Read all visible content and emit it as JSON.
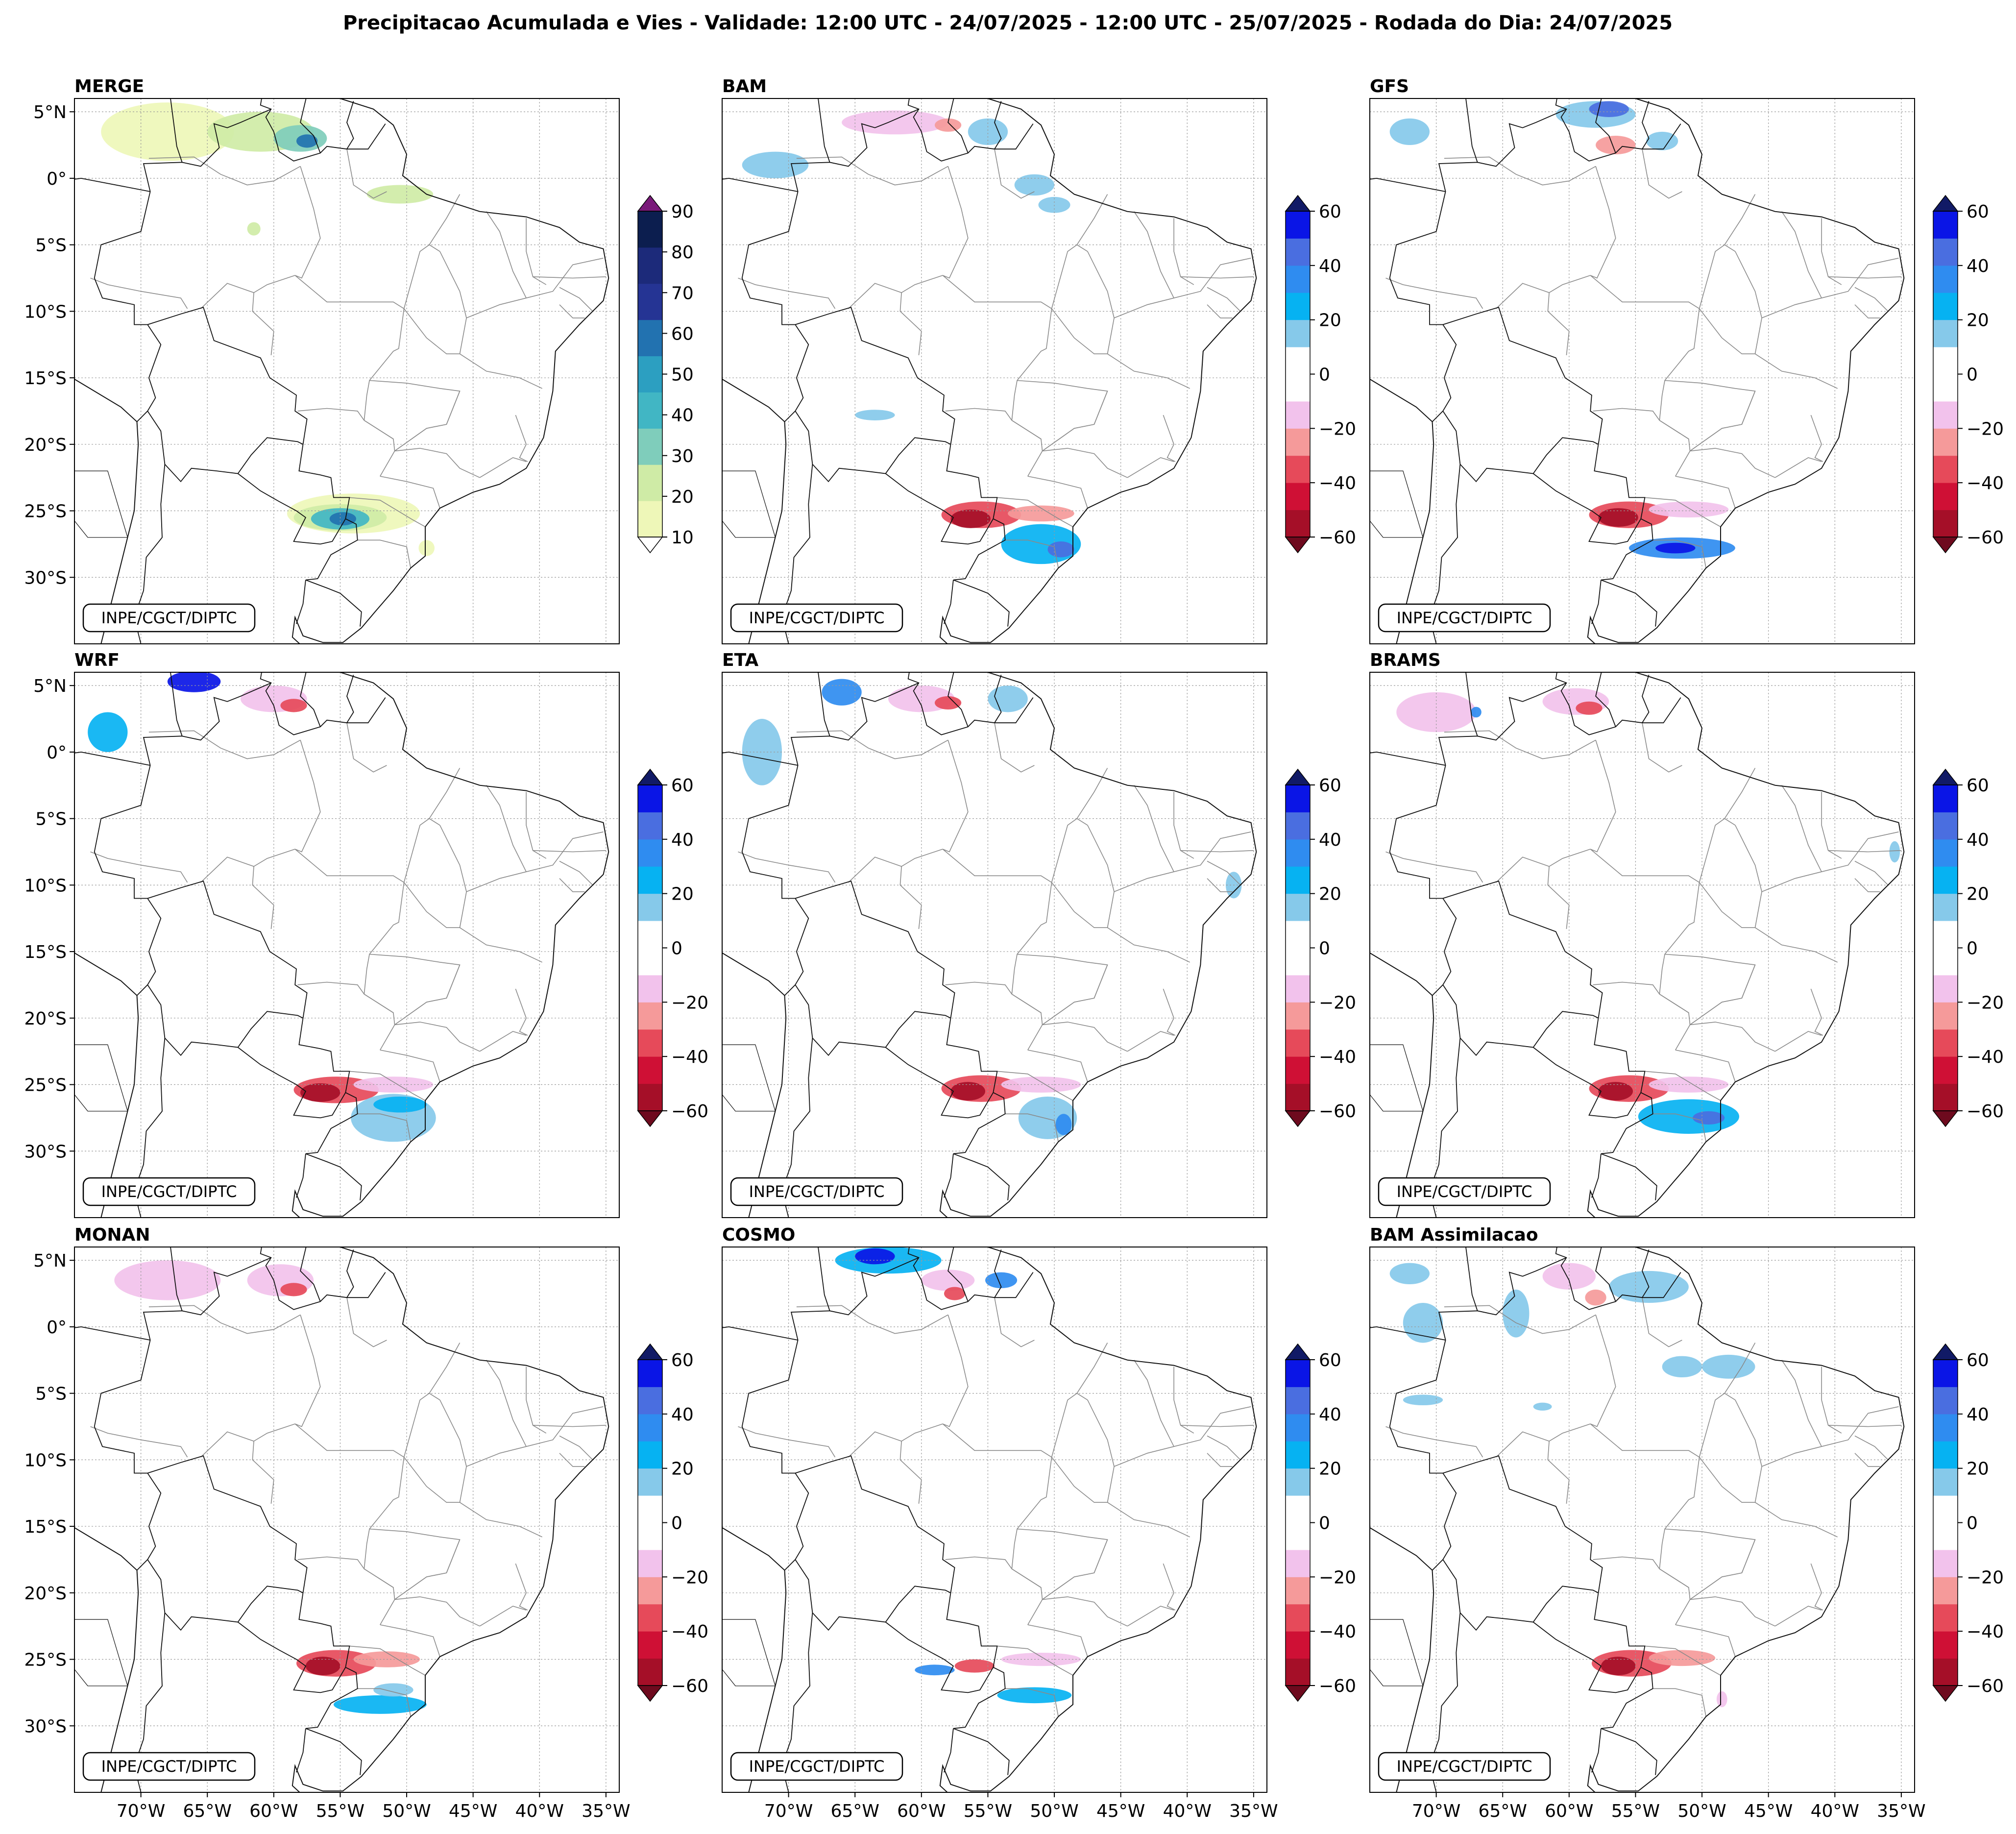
{
  "title": "Precipitacao Acumulada e Vies - Validade: 12:00 UTC - 24/07/2025 - 12:00 UTC - 25/07/2025 - Rodada do Dia: 24/07/2025",
  "credit": "INPE/CGCT/DIPTC",
  "lat_labels": [
    "5°N",
    "0°",
    "5°S",
    "10°S",
    "15°S",
    "20°S",
    "25°S",
    "30°S"
  ],
  "lon_labels": [
    "70°W",
    "65°W",
    "60°W",
    "55°W",
    "50°W",
    "45°W",
    "40°W",
    "35°W"
  ],
  "colorbars": {
    "precip": {
      "levels": [
        10,
        20,
        30,
        40,
        50,
        60,
        70,
        80,
        90
      ],
      "tick_labels": [
        "10",
        "20",
        "30",
        "40",
        "50",
        "60",
        "70",
        "80",
        "90"
      ],
      "colors": [
        "#eef7b8",
        "#cfeba6",
        "#7fcdbb",
        "#41b6c4",
        "#2c9fc1",
        "#2272b0",
        "#253494",
        "#1c2a7a",
        "#0c1e4f"
      ],
      "under_color": "#ffffff",
      "over_color": "#7a1a7a"
    },
    "bias": {
      "levels": [
        -60,
        -50,
        -40,
        -30,
        -20,
        -10,
        0,
        10,
        20,
        30,
        40,
        50,
        60
      ],
      "tick_labels": [
        "60",
        "40",
        "20",
        "0",
        "−20",
        "−40",
        "−60"
      ],
      "colors": [
        "#a50f28",
        "#cf1035",
        "#e64a5a",
        "#f59a9a",
        "#f2c2ec",
        "#ffffff",
        "#ffffff",
        "#86c9ea",
        "#06b2f2",
        "#2f8cf0",
        "#4a6ee0",
        "#0a15e6"
      ],
      "under_color": "#6e0a1e",
      "over_color": "#111a66"
    }
  },
  "panels": [
    {
      "id": "merge",
      "title": "MERGE",
      "type": "precip"
    },
    {
      "id": "bam",
      "title": "BAM",
      "type": "bias"
    },
    {
      "id": "gfs",
      "title": "GFS",
      "type": "bias"
    },
    {
      "id": "wrf",
      "title": "WRF",
      "type": "bias"
    },
    {
      "id": "eta",
      "title": "ETA",
      "type": "bias"
    },
    {
      "id": "brams",
      "title": "BRAMS",
      "type": "bias"
    },
    {
      "id": "monan",
      "title": "MONAN",
      "type": "bias"
    },
    {
      "id": "cosmo",
      "title": "COSMO",
      "type": "bias"
    },
    {
      "id": "bam-assim",
      "title": "BAM Assimilacao",
      "type": "bias"
    }
  ],
  "blobs": {
    "merge": [
      {
        "lon": -68,
        "lat": 3.5,
        "rx": 5,
        "ry": 2.2,
        "c": "#eef7b8"
      },
      {
        "lon": -61,
        "lat": 3.5,
        "rx": 4,
        "ry": 1.5,
        "c": "#cfeba6"
      },
      {
        "lon": -58,
        "lat": 3,
        "rx": 2,
        "ry": 1,
        "c": "#7fcdbb"
      },
      {
        "lon": -57.5,
        "lat": 2.8,
        "rx": 0.8,
        "ry": 0.5,
        "c": "#2272b0"
      },
      {
        "lon": -50.5,
        "lat": -1.2,
        "rx": 2.5,
        "ry": 0.7,
        "c": "#cfeba6"
      },
      {
        "lon": -61.5,
        "lat": -3.8,
        "rx": 0.5,
        "ry": 0.5,
        "c": "#cfeba6"
      },
      {
        "lon": -54,
        "lat": -25.2,
        "rx": 5,
        "ry": 1.5,
        "c": "#eef7b8"
      },
      {
        "lon": -55,
        "lat": -25.5,
        "rx": 3.5,
        "ry": 1,
        "c": "#cfeba6"
      },
      {
        "lon": -55,
        "lat": -25.6,
        "rx": 2.2,
        "ry": 0.8,
        "c": "#41b6c4"
      },
      {
        "lon": -54.8,
        "lat": -25.6,
        "rx": 1,
        "ry": 0.5,
        "c": "#2272b0"
      },
      {
        "lon": -48.5,
        "lat": -27.8,
        "rx": 0.6,
        "ry": 0.6,
        "c": "#eef7b8"
      }
    ],
    "bam": [
      {
        "lon": -71,
        "lat": 1,
        "rx": 2.5,
        "ry": 1,
        "c": "#86c9ea"
      },
      {
        "lon": -62,
        "lat": 4.2,
        "rx": 4,
        "ry": 0.9,
        "c": "#f2c2ec"
      },
      {
        "lon": -58,
        "lat": 4,
        "rx": 1,
        "ry": 0.5,
        "c": "#f59a9a"
      },
      {
        "lon": -55,
        "lat": 3.5,
        "rx": 1.5,
        "ry": 1,
        "c": "#86c9ea"
      },
      {
        "lon": -51.5,
        "lat": -0.5,
        "rx": 1.5,
        "ry": 0.8,
        "c": "#86c9ea"
      },
      {
        "lon": -50,
        "lat": -2,
        "rx": 1.2,
        "ry": 0.6,
        "c": "#86c9ea"
      },
      {
        "lon": -63.5,
        "lat": -17.8,
        "rx": 1.5,
        "ry": 0.4,
        "c": "#86c9ea"
      },
      {
        "lon": -55.5,
        "lat": -25.3,
        "rx": 3,
        "ry": 1,
        "c": "#e64a5a"
      },
      {
        "lon": -56.3,
        "lat": -25.6,
        "rx": 1.5,
        "ry": 0.7,
        "c": "#a50f28"
      },
      {
        "lon": -51,
        "lat": -25.2,
        "rx": 2.5,
        "ry": 0.6,
        "c": "#f59a9a"
      },
      {
        "lon": -51,
        "lat": -27.5,
        "rx": 3,
        "ry": 1.5,
        "c": "#06b2f2"
      },
      {
        "lon": -49.5,
        "lat": -27.9,
        "rx": 1,
        "ry": 0.6,
        "c": "#4a6ee0"
      }
    ],
    "gfs": [
      {
        "lon": -72,
        "lat": 3.5,
        "rx": 1.5,
        "ry": 1,
        "c": "#86c9ea"
      },
      {
        "lon": -58,
        "lat": 4.8,
        "rx": 3,
        "ry": 1,
        "c": "#86c9ea"
      },
      {
        "lon": -57,
        "lat": 5.2,
        "rx": 1.5,
        "ry": 0.6,
        "c": "#4a6ee0"
      },
      {
        "lon": -56.5,
        "lat": 2.5,
        "rx": 1.5,
        "ry": 0.7,
        "c": "#f59a9a"
      },
      {
        "lon": -53,
        "lat": 2.8,
        "rx": 1.2,
        "ry": 0.7,
        "c": "#86c9ea"
      },
      {
        "lon": -55.5,
        "lat": -25.3,
        "rx": 3,
        "ry": 1,
        "c": "#e64a5a"
      },
      {
        "lon": -56.3,
        "lat": -25.5,
        "rx": 1.5,
        "ry": 0.7,
        "c": "#a50f28"
      },
      {
        "lon": -51,
        "lat": -24.9,
        "rx": 3,
        "ry": 0.6,
        "c": "#f2c2ec"
      },
      {
        "lon": -51.5,
        "lat": -27.8,
        "rx": 4,
        "ry": 0.8,
        "c": "#2f8cf0"
      },
      {
        "lon": -52,
        "lat": -27.8,
        "rx": 1.5,
        "ry": 0.4,
        "c": "#0a15e6"
      }
    ],
    "wrf": [
      {
        "lon": -72.5,
        "lat": 1.5,
        "rx": 1.5,
        "ry": 1.5,
        "c": "#06b2f2"
      },
      {
        "lon": -66,
        "lat": 5.3,
        "rx": 2,
        "ry": 0.8,
        "c": "#0a15e6"
      },
      {
        "lon": -60,
        "lat": 4,
        "rx": 2.5,
        "ry": 1,
        "c": "#f2c2ec"
      },
      {
        "lon": -58.5,
        "lat": 3.5,
        "rx": 1,
        "ry": 0.5,
        "c": "#e64a5a"
      },
      {
        "lon": -55.3,
        "lat": -25.4,
        "rx": 3.2,
        "ry": 1,
        "c": "#e64a5a"
      },
      {
        "lon": -56.5,
        "lat": -25.6,
        "rx": 1.5,
        "ry": 0.7,
        "c": "#a50f28"
      },
      {
        "lon": -51,
        "lat": -25,
        "rx": 3,
        "ry": 0.6,
        "c": "#f2c2ec"
      },
      {
        "lon": -51,
        "lat": -27.5,
        "rx": 3.2,
        "ry": 1.8,
        "c": "#86c9ea"
      },
      {
        "lon": -50.5,
        "lat": -26.5,
        "rx": 2,
        "ry": 0.6,
        "c": "#06b2f2"
      }
    ],
    "eta": [
      {
        "lon": -72,
        "lat": 0,
        "rx": 1.5,
        "ry": 2.5,
        "c": "#86c9ea"
      },
      {
        "lon": -66,
        "lat": 4.5,
        "rx": 1.5,
        "ry": 1,
        "c": "#2f8cf0"
      },
      {
        "lon": -60,
        "lat": 4,
        "rx": 2.5,
        "ry": 1,
        "c": "#f2c2ec"
      },
      {
        "lon": -58,
        "lat": 3.7,
        "rx": 1,
        "ry": 0.5,
        "c": "#e64a5a"
      },
      {
        "lon": -53.5,
        "lat": 4,
        "rx": 1.5,
        "ry": 1,
        "c": "#86c9ea"
      },
      {
        "lon": -36.5,
        "lat": -10,
        "rx": 0.6,
        "ry": 1,
        "c": "#86c9ea"
      },
      {
        "lon": -55.5,
        "lat": -25.3,
        "rx": 3,
        "ry": 1,
        "c": "#e64a5a"
      },
      {
        "lon": -56.5,
        "lat": -25.5,
        "rx": 1.3,
        "ry": 0.7,
        "c": "#a50f28"
      },
      {
        "lon": -51,
        "lat": -25,
        "rx": 3,
        "ry": 0.6,
        "c": "#f2c2ec"
      },
      {
        "lon": -50.5,
        "lat": -27.5,
        "rx": 2.2,
        "ry": 1.6,
        "c": "#86c9ea"
      },
      {
        "lon": -49.3,
        "lat": -28,
        "rx": 0.6,
        "ry": 0.8,
        "c": "#2f8cf0"
      }
    ],
    "brams": [
      {
        "lon": -70,
        "lat": 3,
        "rx": 3,
        "ry": 1.5,
        "c": "#f2c2ec"
      },
      {
        "lon": -67,
        "lat": 3,
        "rx": 0.4,
        "ry": 0.4,
        "c": "#2f8cf0"
      },
      {
        "lon": -59.5,
        "lat": 3.8,
        "rx": 2.5,
        "ry": 1,
        "c": "#f2c2ec"
      },
      {
        "lon": -58.5,
        "lat": 3.3,
        "rx": 1,
        "ry": 0.5,
        "c": "#e64a5a"
      },
      {
        "lon": -35.5,
        "lat": -7.5,
        "rx": 0.4,
        "ry": 0.8,
        "c": "#86c9ea"
      },
      {
        "lon": -55.5,
        "lat": -25.3,
        "rx": 3,
        "ry": 1,
        "c": "#e64a5a"
      },
      {
        "lon": -56.5,
        "lat": -25.5,
        "rx": 1.3,
        "ry": 0.7,
        "c": "#a50f28"
      },
      {
        "lon": -51,
        "lat": -25,
        "rx": 3,
        "ry": 0.6,
        "c": "#f2c2ec"
      },
      {
        "lon": -51,
        "lat": -27.4,
        "rx": 3.8,
        "ry": 1.3,
        "c": "#06b2f2"
      },
      {
        "lon": -49.5,
        "lat": -27.5,
        "rx": 1.2,
        "ry": 0.5,
        "c": "#4a6ee0"
      }
    ],
    "monan": [
      {
        "lon": -68,
        "lat": 3.5,
        "rx": 4,
        "ry": 1.5,
        "c": "#f2c2ec"
      },
      {
        "lon": -59.5,
        "lat": 3.5,
        "rx": 2.5,
        "ry": 1.2,
        "c": "#f2c2ec"
      },
      {
        "lon": -58.5,
        "lat": 2.8,
        "rx": 1,
        "ry": 0.5,
        "c": "#e64a5a"
      },
      {
        "lon": -55.3,
        "lat": -25.3,
        "rx": 3,
        "ry": 1,
        "c": "#e64a5a"
      },
      {
        "lon": -56.3,
        "lat": -25.5,
        "rx": 1.3,
        "ry": 0.7,
        "c": "#a50f28"
      },
      {
        "lon": -51.5,
        "lat": -25,
        "rx": 2.5,
        "ry": 0.6,
        "c": "#f59a9a"
      },
      {
        "lon": -52,
        "lat": -28.4,
        "rx": 3.5,
        "ry": 0.7,
        "c": "#06b2f2"
      },
      {
        "lon": -51,
        "lat": -27.3,
        "rx": 1.5,
        "ry": 0.5,
        "c": "#86c9ea"
      }
    ],
    "cosmo": [
      {
        "lon": -62.5,
        "lat": 5,
        "rx": 4,
        "ry": 1,
        "c": "#06b2f2"
      },
      {
        "lon": -63.5,
        "lat": 5.3,
        "rx": 1.5,
        "ry": 0.6,
        "c": "#0a15e6"
      },
      {
        "lon": -58,
        "lat": 3.5,
        "rx": 2,
        "ry": 0.8,
        "c": "#f2c2ec"
      },
      {
        "lon": -57.5,
        "lat": 2.5,
        "rx": 0.8,
        "ry": 0.5,
        "c": "#e64a5a"
      },
      {
        "lon": -54,
        "lat": 3.5,
        "rx": 1.2,
        "ry": 0.6,
        "c": "#2f8cf0"
      },
      {
        "lon": -59,
        "lat": -25.8,
        "rx": 1.5,
        "ry": 0.4,
        "c": "#2f8cf0"
      },
      {
        "lon": -56,
        "lat": -25.5,
        "rx": 1.5,
        "ry": 0.5,
        "c": "#e64a5a"
      },
      {
        "lon": -51,
        "lat": -25,
        "rx": 3,
        "ry": 0.5,
        "c": "#f2c2ec"
      },
      {
        "lon": -51.5,
        "lat": -27.7,
        "rx": 2.8,
        "ry": 0.6,
        "c": "#06b2f2"
      }
    ],
    "bam-assim": [
      {
        "lon": -72,
        "lat": 4,
        "rx": 1.5,
        "ry": 0.8,
        "c": "#86c9ea"
      },
      {
        "lon": -71,
        "lat": 0.3,
        "rx": 1.5,
        "ry": 1.5,
        "c": "#86c9ea"
      },
      {
        "lon": -64,
        "lat": 1,
        "rx": 1,
        "ry": 1.8,
        "c": "#86c9ea"
      },
      {
        "lon": -60,
        "lat": 3.8,
        "rx": 2,
        "ry": 1,
        "c": "#f2c2ec"
      },
      {
        "lon": -58,
        "lat": 2.2,
        "rx": 0.8,
        "ry": 0.6,
        "c": "#f59a9a"
      },
      {
        "lon": -54,
        "lat": 3,
        "rx": 3,
        "ry": 1.2,
        "c": "#86c9ea"
      },
      {
        "lon": -51.5,
        "lat": -3,
        "rx": 1.5,
        "ry": 0.8,
        "c": "#86c9ea"
      },
      {
        "lon": -48,
        "lat": -3,
        "rx": 2,
        "ry": 0.9,
        "c": "#86c9ea"
      },
      {
        "lon": -71,
        "lat": -5.5,
        "rx": 1.5,
        "ry": 0.4,
        "c": "#86c9ea"
      },
      {
        "lon": -62,
        "lat": -6,
        "rx": 0.7,
        "ry": 0.3,
        "c": "#86c9ea"
      },
      {
        "lon": -55.3,
        "lat": -25.3,
        "rx": 3,
        "ry": 1,
        "c": "#e64a5a"
      },
      {
        "lon": -56.3,
        "lat": -25.5,
        "rx": 1.3,
        "ry": 0.7,
        "c": "#a50f28"
      },
      {
        "lon": -51.5,
        "lat": -24.9,
        "rx": 2.5,
        "ry": 0.6,
        "c": "#f59a9a"
      },
      {
        "lon": -48.5,
        "lat": -28,
        "rx": 0.4,
        "ry": 0.6,
        "c": "#f2c2ec"
      }
    ]
  }
}
